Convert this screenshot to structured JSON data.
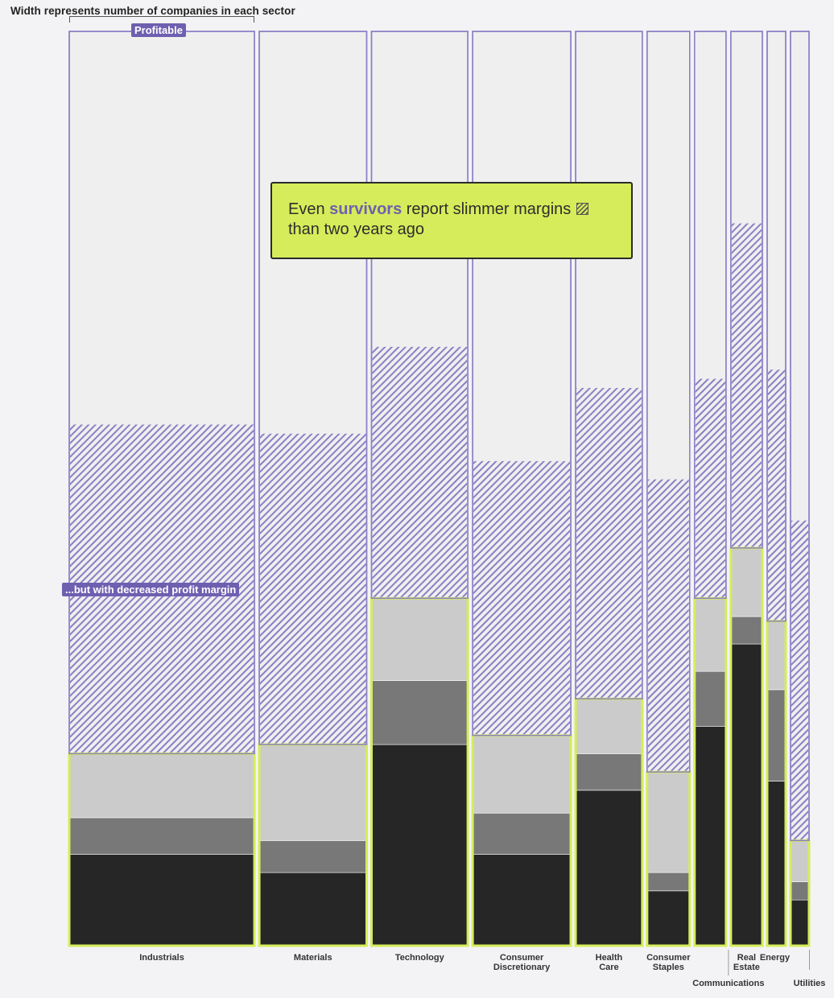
{
  "heading": "Width represents number of companies in each sector",
  "callout": {
    "prefix": "Even ",
    "highlight": "survivors",
    "suffix": " report slimmer margins",
    "line2": "than two years ago"
  },
  "labels": {
    "profitable": "Profitable",
    "decreased": "...but with decreased profit margin"
  },
  "colors": {
    "background": "#f3f3f5",
    "profitable_fill": "#efefef",
    "profitable_outline": "#8a7fc4",
    "hatch": "#8a7fc4",
    "survivor_outline": "#d6ec5a",
    "seg_light": "#cbcbcb",
    "seg_mid": "#787878",
    "seg_dark": "#262626",
    "accent": "#6f5fb0"
  },
  "chart_data": {
    "type": "marimekko",
    "unit": "share of companies in sector (%)",
    "ylim": [
      0,
      100
    ],
    "widths_relative_to_company_count": [
      100,
      58,
      52,
      53,
      36,
      23,
      17,
      17,
      10,
      10
    ],
    "categories": [
      "Industrials",
      "Materials",
      "Technology",
      "Consumer Discretionary",
      "Health Care",
      "Consumer Staples",
      "Communications",
      "Real Estate",
      "Energy",
      "Utilities"
    ],
    "category_labels": [
      [
        "Industrials"
      ],
      [
        "Materials"
      ],
      [
        "Technology"
      ],
      [
        "Consumer",
        "Discretionary"
      ],
      [
        "Health",
        "Care"
      ],
      [
        "Consumer",
        "Staples"
      ],
      [
        "Communications"
      ],
      [
        "Real",
        "Estate"
      ],
      [
        "Energy"
      ],
      [
        "Utilities"
      ]
    ],
    "series": [
      {
        "values": [
          10,
          8,
          22,
          10,
          17,
          6,
          24,
          33,
          18,
          5
        ]
      },
      {
        "values": [
          4,
          3.5,
          7,
          4.5,
          4,
          2,
          6,
          3,
          10,
          2
        ]
      },
      {
        "values": [
          7,
          10.5,
          9,
          8.5,
          6,
          11,
          8,
          7.5,
          7.5,
          4.5
        ]
      },
      {
        "values": [
          36,
          34,
          27.5,
          30,
          34,
          32,
          24,
          35.5,
          27.5,
          35
        ]
      },
      {
        "values": [
          43,
          44,
          34.5,
          47,
          39,
          49,
          38,
          21,
          37,
          53.5
        ]
      }
    ]
  }
}
